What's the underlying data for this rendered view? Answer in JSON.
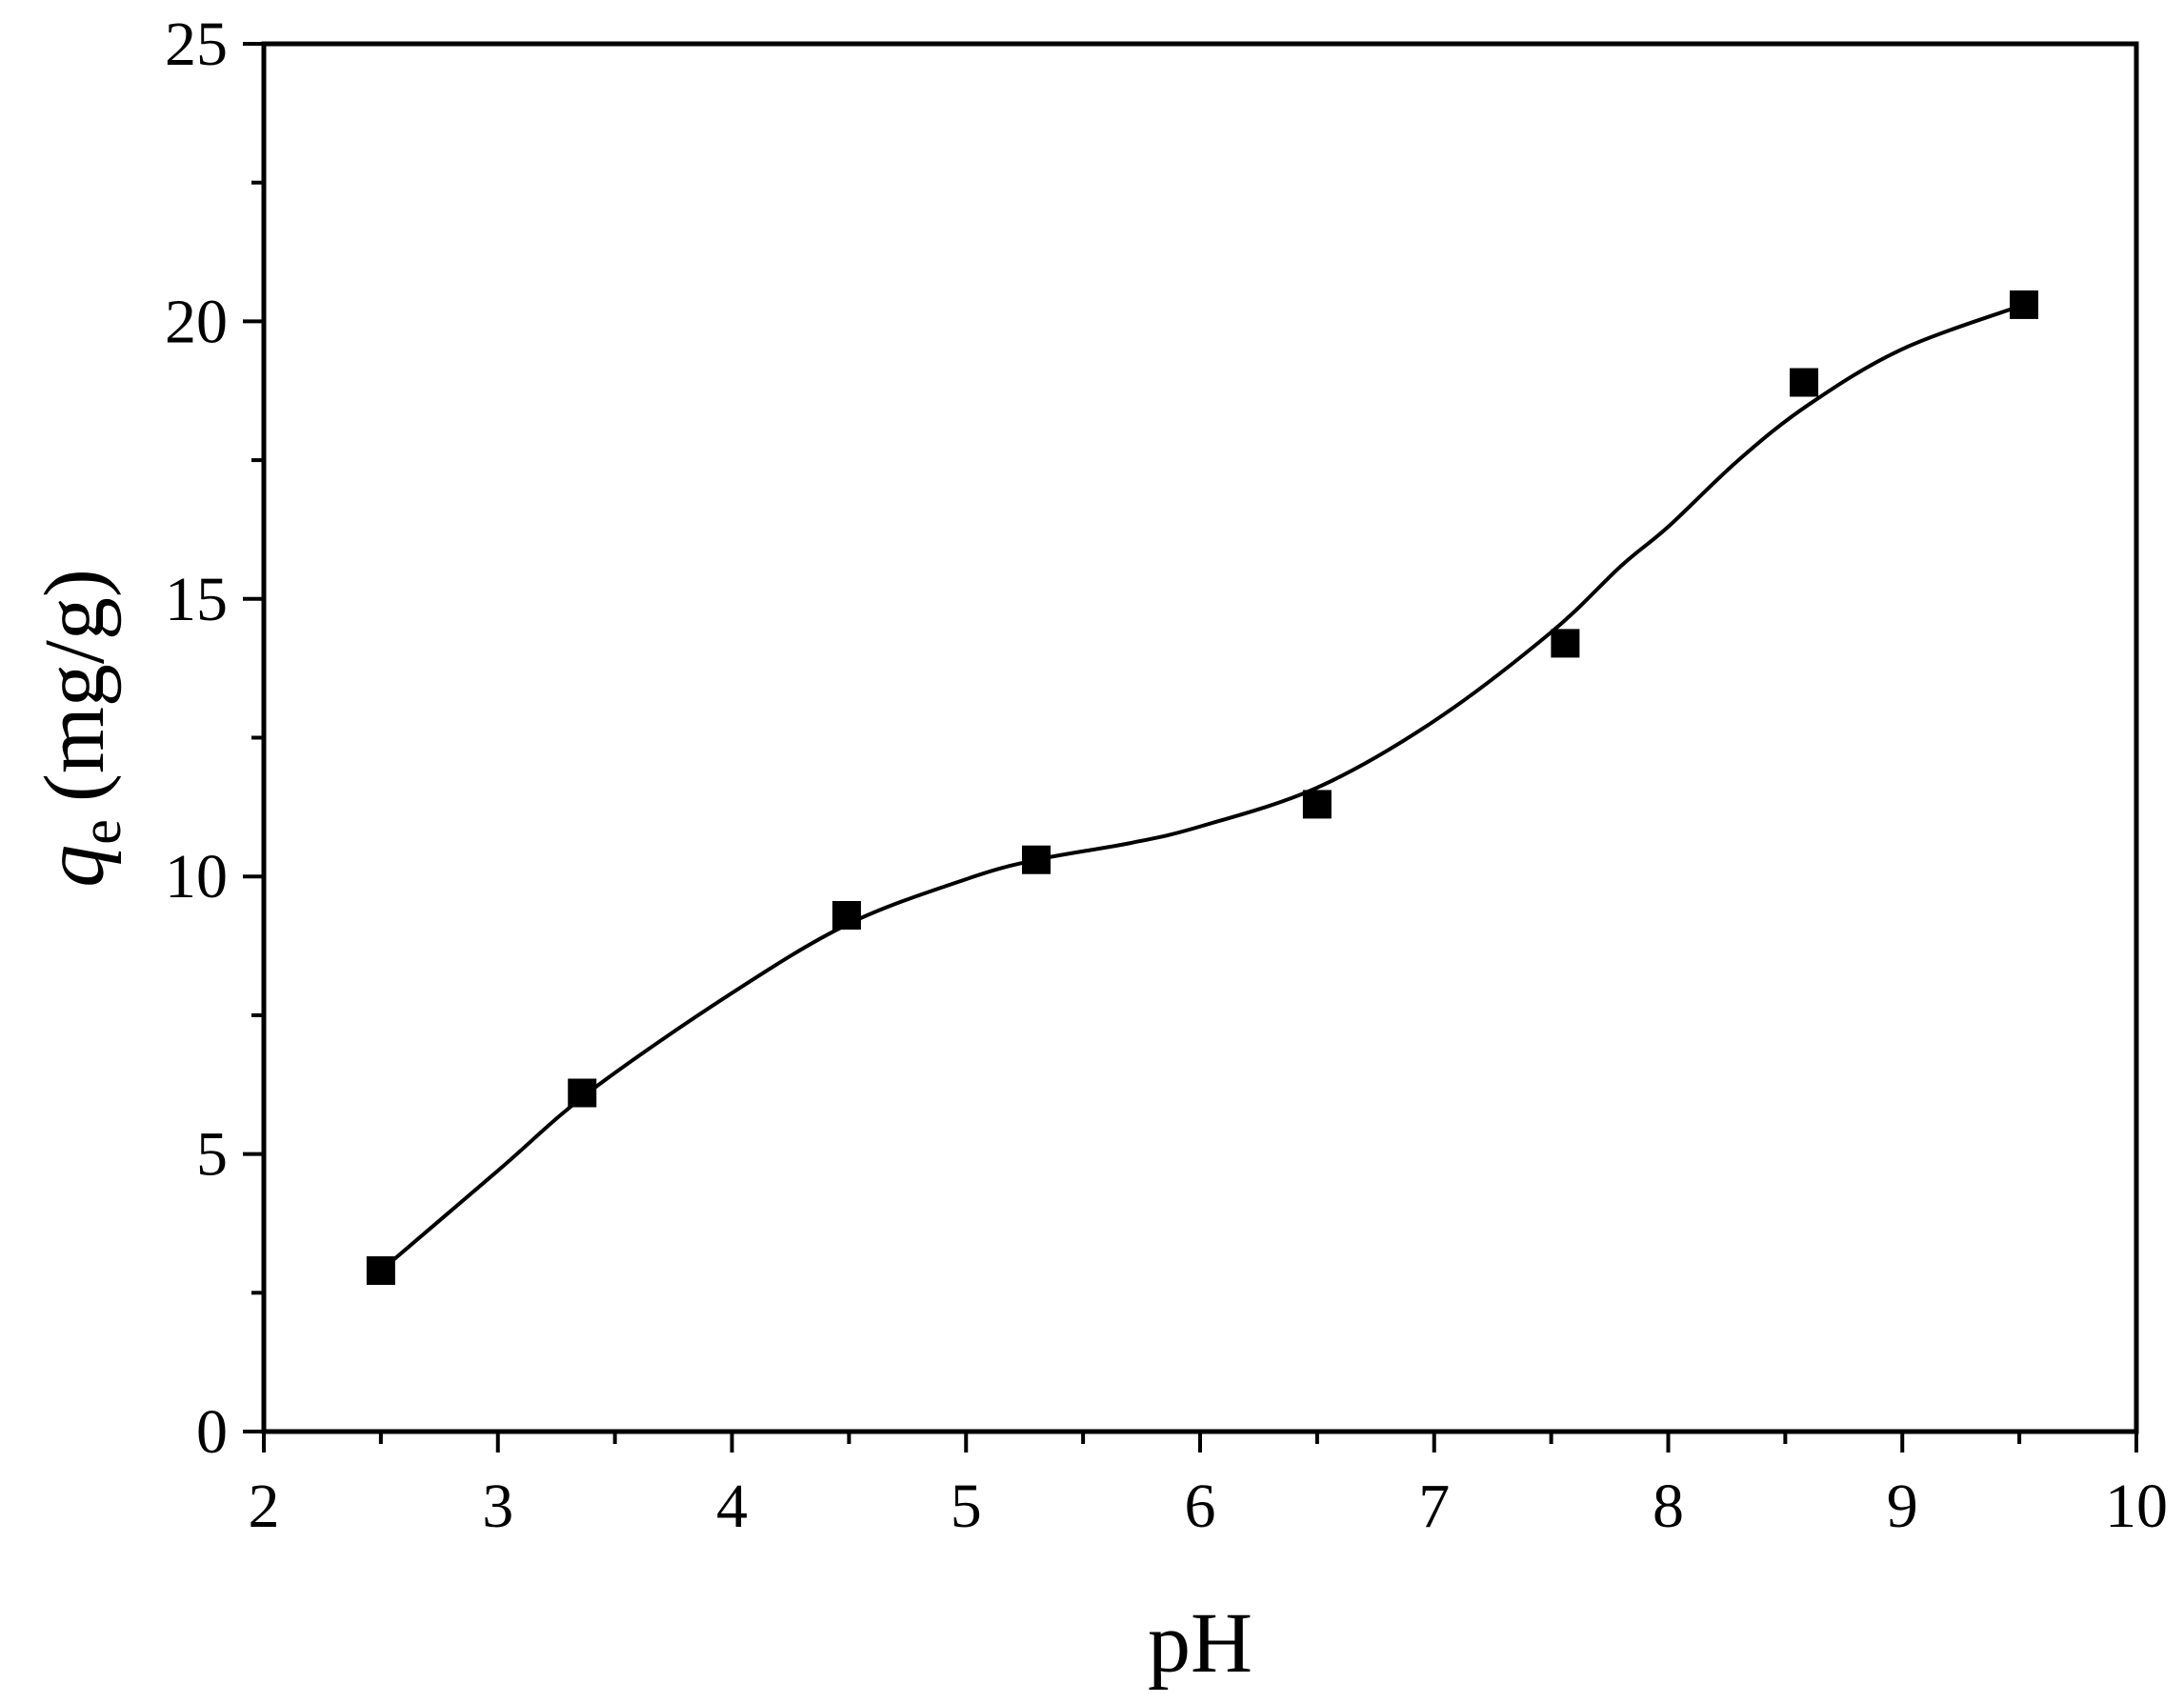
{
  "chart_data": {
    "type": "scatter",
    "xlabel": "pH",
    "ylabel": {
      "symbol": "q",
      "subscript": "e",
      "unit": "(mg/g)"
    },
    "xlim": [
      2,
      10
    ],
    "ylim": [
      0,
      25
    ],
    "x_ticks": [
      "2",
      "3",
      "4",
      "5",
      "6",
      "7",
      "8",
      "9",
      "10"
    ],
    "y_ticks": [
      "0",
      "5",
      "10",
      "15",
      "20",
      "25"
    ],
    "x_minor_step": 0.5,
    "y_minor_step": 2.5,
    "grid": false,
    "colors": {
      "axis": "#000000",
      "marker": "#000000",
      "fit": "#000000"
    },
    "series": [
      {
        "marker": "square",
        "x": [
          2.5,
          3.36,
          4.49,
          5.3,
          6.5,
          7.56,
          8.58,
          9.52
        ],
        "y": [
          2.9,
          6.1,
          9.3,
          10.3,
          11.3,
          14.2,
          18.9,
          20.3
        ]
      }
    ],
    "fit_curve": {
      "style": "smooth line",
      "x": [
        2.5,
        3.0,
        3.4,
        4.0,
        4.5,
        5.0,
        5.3,
        5.7,
        6.0,
        6.5,
        7.0,
        7.5,
        7.8,
        8.0,
        8.3,
        8.6,
        9.0,
        9.52
      ],
      "y": [
        2.9,
        4.7,
        6.15,
        7.9,
        9.15,
        9.95,
        10.3,
        10.6,
        10.9,
        11.6,
        12.8,
        14.4,
        15.6,
        16.3,
        17.5,
        18.5,
        19.5,
        20.3
      ]
    }
  }
}
